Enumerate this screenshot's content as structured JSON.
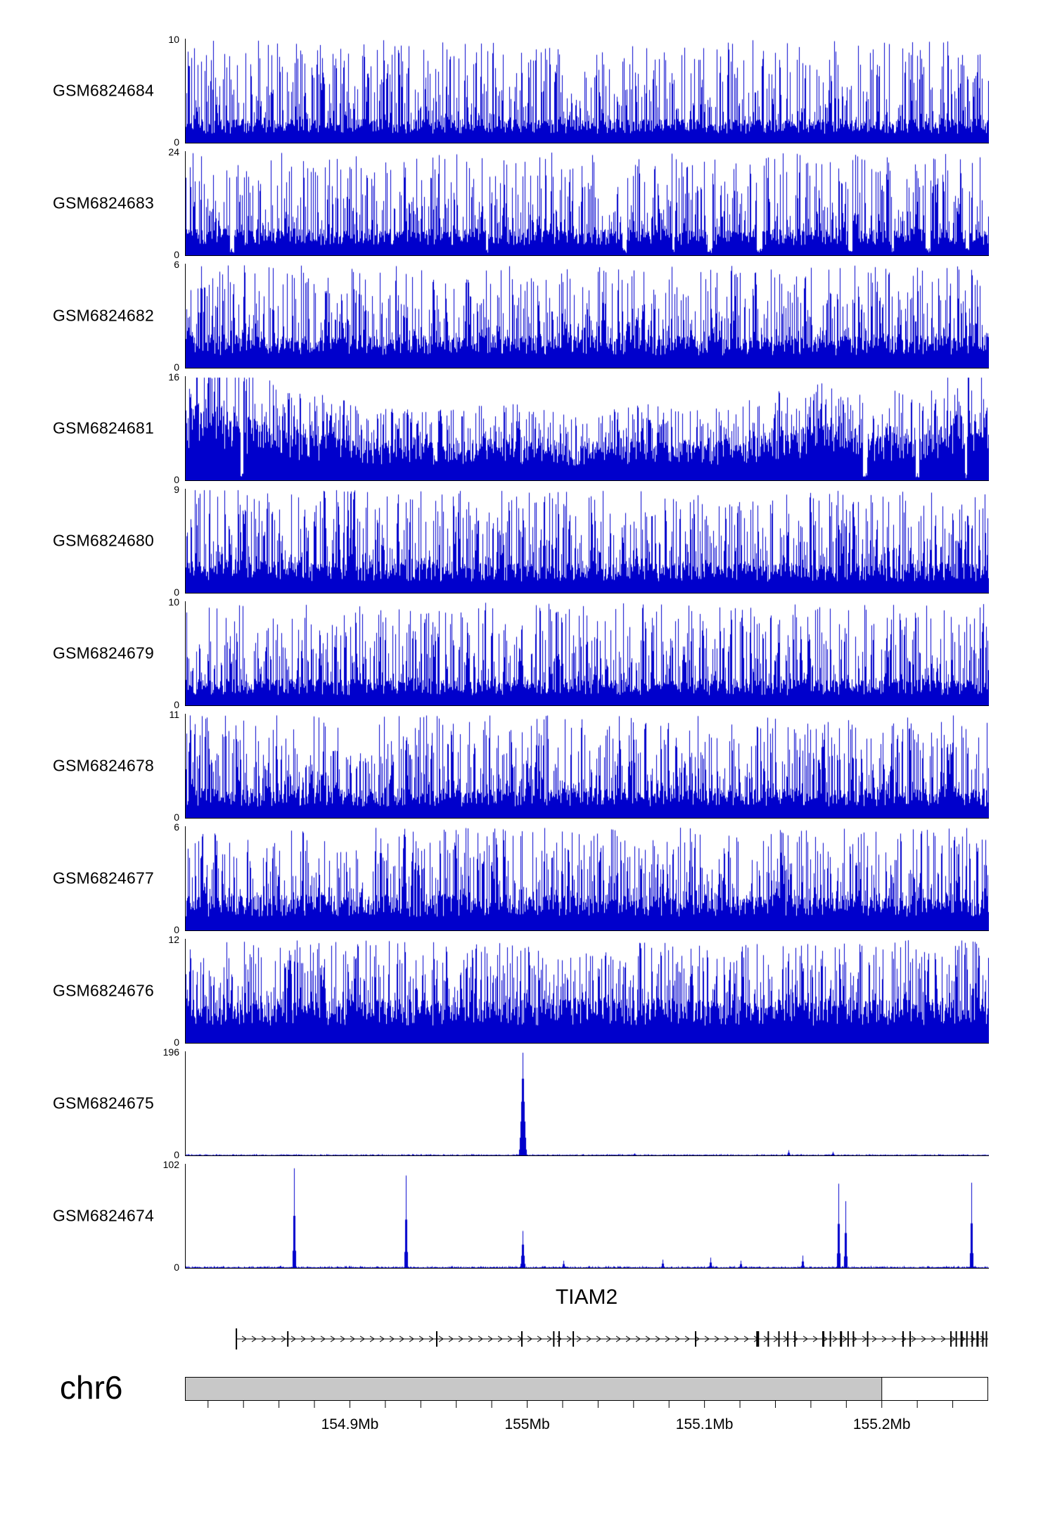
{
  "figure": {
    "chromosome": "chr6",
    "x_axis": {
      "start_mb": 154.807,
      "end_mb": 155.26,
      "ticks": [
        {
          "mb": 154.9,
          "label": "154.9Mb"
        },
        {
          "mb": 155.0,
          "label": "155Mb"
        },
        {
          "mb": 155.1,
          "label": "155.1Mb"
        },
        {
          "mb": 155.2,
          "label": "155.2Mb"
        }
      ],
      "minor_tick_step_mb": 0.02
    }
  },
  "colors": {
    "signal": "#0000cc",
    "ideogram_fill": "#c8c8c8",
    "axis": "#000000"
  },
  "chart_data": {
    "type": "area",
    "description": "Genome browser read-coverage tracks for 11 GEO samples over chr6 ~154.81-155.26 Mb spanning the TIAM2 gene; top nine tracks show dense continuous signal, bottom two show sparse sharp peaks.",
    "tracks": [
      {
        "label": "GSM6824684",
        "ymin": 0,
        "ymax": 10,
        "style": "dense",
        "base": 0.16,
        "spike": 1.0,
        "exp": 2.4
      },
      {
        "label": "GSM6824683",
        "ymin": 0,
        "ymax": 24,
        "style": "dense",
        "base": 0.18,
        "spike": 1.0,
        "exp": 2.2,
        "gaps": 0.01
      },
      {
        "label": "GSM6824682",
        "ymin": 0,
        "ymax": 6,
        "style": "dense",
        "base": 0.22,
        "spike": 1.0,
        "exp": 1.9
      },
      {
        "label": "GSM6824681",
        "ymin": 0,
        "ymax": 16,
        "style": "dense",
        "base": 0.38,
        "spike": 1.0,
        "exp": 1.3,
        "gaps": 0.004,
        "envelope": [
          [
            0,
            1.35
          ],
          [
            0.03,
            1.5
          ],
          [
            0.07,
            1.2
          ],
          [
            0.12,
            0.95
          ],
          [
            0.2,
            0.8
          ],
          [
            0.3,
            0.68
          ],
          [
            0.4,
            0.75
          ],
          [
            0.5,
            0.66
          ],
          [
            0.58,
            0.75
          ],
          [
            0.66,
            0.7
          ],
          [
            0.74,
            0.9
          ],
          [
            0.8,
            1.0
          ],
          [
            0.86,
            0.85
          ],
          [
            0.93,
            0.95
          ],
          [
            1,
            1.3
          ]
        ]
      },
      {
        "label": "GSM6824680",
        "ymin": 0,
        "ymax": 9,
        "style": "dense",
        "base": 0.2,
        "spike": 1.0,
        "exp": 2.0,
        "envelope": [
          [
            0,
            1.0
          ],
          [
            0.05,
            1.15
          ],
          [
            0.1,
            1.1
          ],
          [
            0.15,
            1.0
          ],
          [
            1,
            1.0
          ]
        ]
      },
      {
        "label": "GSM6824679",
        "ymin": 0,
        "ymax": 10,
        "style": "dense",
        "base": 0.18,
        "spike": 1.0,
        "exp": 2.1
      },
      {
        "label": "GSM6824678",
        "ymin": 0,
        "ymax": 11,
        "style": "dense",
        "base": 0.2,
        "spike": 1.0,
        "exp": 2.1
      },
      {
        "label": "GSM6824677",
        "ymin": 0,
        "ymax": 6,
        "style": "dense",
        "base": 0.24,
        "spike": 1.0,
        "exp": 1.8
      },
      {
        "label": "GSM6824676",
        "ymin": 0,
        "ymax": 12,
        "style": "dense",
        "base": 0.3,
        "spike": 1.0,
        "exp": 1.6
      },
      {
        "label": "GSM6824675",
        "ymin": 0,
        "ymax": 196,
        "style": "peaks",
        "noise": 0.008,
        "peaks": [
          {
            "mb": 154.997,
            "h": 1.0,
            "w": 5
          },
          {
            "mb": 155.06,
            "h": 0.02,
            "w": 2
          },
          {
            "mb": 155.147,
            "h": 0.05,
            "w": 2
          },
          {
            "mb": 155.172,
            "h": 0.035,
            "w": 2
          }
        ]
      },
      {
        "label": "GSM6824674",
        "ymin": 0,
        "ymax": 102,
        "style": "peaks",
        "noise": 0.012,
        "peaks": [
          {
            "mb": 154.868,
            "h": 0.97,
            "w": 2
          },
          {
            "mb": 154.931,
            "h": 0.9,
            "w": 2
          },
          {
            "mb": 154.997,
            "h": 0.36,
            "w": 3
          },
          {
            "mb": 155.02,
            "h": 0.07,
            "w": 2
          },
          {
            "mb": 155.076,
            "h": 0.08,
            "w": 2
          },
          {
            "mb": 155.103,
            "h": 0.1,
            "w": 2
          },
          {
            "mb": 155.12,
            "h": 0.07,
            "w": 2
          },
          {
            "mb": 155.155,
            "h": 0.12,
            "w": 2
          },
          {
            "mb": 155.175,
            "h": 0.82,
            "w": 2
          },
          {
            "mb": 155.179,
            "h": 0.65,
            "w": 2
          },
          {
            "mb": 155.25,
            "h": 0.83,
            "w": 2
          }
        ]
      }
    ],
    "gene": {
      "name": "TIAM2",
      "strand": "+",
      "start_mb": 154.836,
      "end_mb": 155.26,
      "exons": [
        {
          "mb": 154.836,
          "w": 2,
          "tall": true
        },
        {
          "mb": 154.865,
          "w": 2
        },
        {
          "mb": 154.949,
          "w": 2
        },
        {
          "mb": 154.997,
          "w": 2
        },
        {
          "mb": 155.015,
          "w": 2
        },
        {
          "mb": 155.018,
          "w": 2
        },
        {
          "mb": 155.026,
          "w": 2
        },
        {
          "mb": 155.095,
          "w": 2
        },
        {
          "mb": 155.13,
          "w": 4
        },
        {
          "mb": 155.136,
          "w": 2
        },
        {
          "mb": 155.142,
          "w": 2
        },
        {
          "mb": 155.147,
          "w": 2
        },
        {
          "mb": 155.151,
          "w": 2
        },
        {
          "mb": 155.167,
          "w": 3
        },
        {
          "mb": 155.171,
          "w": 2
        },
        {
          "mb": 155.177,
          "w": 3
        },
        {
          "mb": 155.181,
          "w": 2
        },
        {
          "mb": 155.184,
          "w": 2
        },
        {
          "mb": 155.192,
          "w": 2
        },
        {
          "mb": 155.212,
          "w": 2
        },
        {
          "mb": 155.216,
          "w": 2
        },
        {
          "mb": 155.239,
          "w": 2
        },
        {
          "mb": 155.242,
          "w": 2
        },
        {
          "mb": 155.245,
          "w": 3
        },
        {
          "mb": 155.248,
          "w": 2
        },
        {
          "mb": 155.251,
          "w": 2
        },
        {
          "mb": 155.254,
          "w": 3
        },
        {
          "mb": 155.257,
          "w": 2
        },
        {
          "mb": 155.259,
          "w": 2
        }
      ]
    },
    "ideogram": {
      "filled_until_mb": 155.2
    }
  }
}
